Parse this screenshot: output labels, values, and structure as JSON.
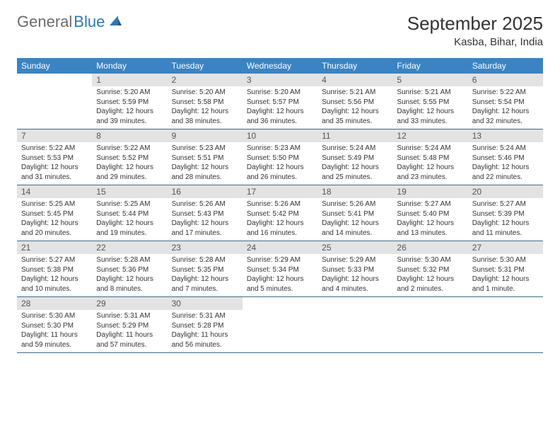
{
  "logo": {
    "part1": "General",
    "part2": "Blue"
  },
  "title": "September 2025",
  "subtitle": "Kasba, Bihar, India",
  "day_names": [
    "Sunday",
    "Monday",
    "Tuesday",
    "Wednesday",
    "Thursday",
    "Friday",
    "Saturday"
  ],
  "colors": {
    "header_bg": "#3a84c4",
    "header_fg": "#ffffff",
    "daynum_bg": "#e3e3e3",
    "week_border": "#3a6b92",
    "logo_blue": "#2e77b8",
    "logo_gray": "#6b6b6b"
  },
  "weeks": [
    [
      {
        "n": "",
        "lines": []
      },
      {
        "n": "1",
        "lines": [
          "Sunrise: 5:20 AM",
          "Sunset: 5:59 PM",
          "Daylight: 12 hours and 39 minutes."
        ]
      },
      {
        "n": "2",
        "lines": [
          "Sunrise: 5:20 AM",
          "Sunset: 5:58 PM",
          "Daylight: 12 hours and 38 minutes."
        ]
      },
      {
        "n": "3",
        "lines": [
          "Sunrise: 5:20 AM",
          "Sunset: 5:57 PM",
          "Daylight: 12 hours and 36 minutes."
        ]
      },
      {
        "n": "4",
        "lines": [
          "Sunrise: 5:21 AM",
          "Sunset: 5:56 PM",
          "Daylight: 12 hours and 35 minutes."
        ]
      },
      {
        "n": "5",
        "lines": [
          "Sunrise: 5:21 AM",
          "Sunset: 5:55 PM",
          "Daylight: 12 hours and 33 minutes."
        ]
      },
      {
        "n": "6",
        "lines": [
          "Sunrise: 5:22 AM",
          "Sunset: 5:54 PM",
          "Daylight: 12 hours and 32 minutes."
        ]
      }
    ],
    [
      {
        "n": "7",
        "lines": [
          "Sunrise: 5:22 AM",
          "Sunset: 5:53 PM",
          "Daylight: 12 hours and 31 minutes."
        ]
      },
      {
        "n": "8",
        "lines": [
          "Sunrise: 5:22 AM",
          "Sunset: 5:52 PM",
          "Daylight: 12 hours and 29 minutes."
        ]
      },
      {
        "n": "9",
        "lines": [
          "Sunrise: 5:23 AM",
          "Sunset: 5:51 PM",
          "Daylight: 12 hours and 28 minutes."
        ]
      },
      {
        "n": "10",
        "lines": [
          "Sunrise: 5:23 AM",
          "Sunset: 5:50 PM",
          "Daylight: 12 hours and 26 minutes."
        ]
      },
      {
        "n": "11",
        "lines": [
          "Sunrise: 5:24 AM",
          "Sunset: 5:49 PM",
          "Daylight: 12 hours and 25 minutes."
        ]
      },
      {
        "n": "12",
        "lines": [
          "Sunrise: 5:24 AM",
          "Sunset: 5:48 PM",
          "Daylight: 12 hours and 23 minutes."
        ]
      },
      {
        "n": "13",
        "lines": [
          "Sunrise: 5:24 AM",
          "Sunset: 5:46 PM",
          "Daylight: 12 hours and 22 minutes."
        ]
      }
    ],
    [
      {
        "n": "14",
        "lines": [
          "Sunrise: 5:25 AM",
          "Sunset: 5:45 PM",
          "Daylight: 12 hours and 20 minutes."
        ]
      },
      {
        "n": "15",
        "lines": [
          "Sunrise: 5:25 AM",
          "Sunset: 5:44 PM",
          "Daylight: 12 hours and 19 minutes."
        ]
      },
      {
        "n": "16",
        "lines": [
          "Sunrise: 5:26 AM",
          "Sunset: 5:43 PM",
          "Daylight: 12 hours and 17 minutes."
        ]
      },
      {
        "n": "17",
        "lines": [
          "Sunrise: 5:26 AM",
          "Sunset: 5:42 PM",
          "Daylight: 12 hours and 16 minutes."
        ]
      },
      {
        "n": "18",
        "lines": [
          "Sunrise: 5:26 AM",
          "Sunset: 5:41 PM",
          "Daylight: 12 hours and 14 minutes."
        ]
      },
      {
        "n": "19",
        "lines": [
          "Sunrise: 5:27 AM",
          "Sunset: 5:40 PM",
          "Daylight: 12 hours and 13 minutes."
        ]
      },
      {
        "n": "20",
        "lines": [
          "Sunrise: 5:27 AM",
          "Sunset: 5:39 PM",
          "Daylight: 12 hours and 11 minutes."
        ]
      }
    ],
    [
      {
        "n": "21",
        "lines": [
          "Sunrise: 5:27 AM",
          "Sunset: 5:38 PM",
          "Daylight: 12 hours and 10 minutes."
        ]
      },
      {
        "n": "22",
        "lines": [
          "Sunrise: 5:28 AM",
          "Sunset: 5:36 PM",
          "Daylight: 12 hours and 8 minutes."
        ]
      },
      {
        "n": "23",
        "lines": [
          "Sunrise: 5:28 AM",
          "Sunset: 5:35 PM",
          "Daylight: 12 hours and 7 minutes."
        ]
      },
      {
        "n": "24",
        "lines": [
          "Sunrise: 5:29 AM",
          "Sunset: 5:34 PM",
          "Daylight: 12 hours and 5 minutes."
        ]
      },
      {
        "n": "25",
        "lines": [
          "Sunrise: 5:29 AM",
          "Sunset: 5:33 PM",
          "Daylight: 12 hours and 4 minutes."
        ]
      },
      {
        "n": "26",
        "lines": [
          "Sunrise: 5:30 AM",
          "Sunset: 5:32 PM",
          "Daylight: 12 hours and 2 minutes."
        ]
      },
      {
        "n": "27",
        "lines": [
          "Sunrise: 5:30 AM",
          "Sunset: 5:31 PM",
          "Daylight: 12 hours and 1 minute."
        ]
      }
    ],
    [
      {
        "n": "28",
        "lines": [
          "Sunrise: 5:30 AM",
          "Sunset: 5:30 PM",
          "Daylight: 11 hours and 59 minutes."
        ]
      },
      {
        "n": "29",
        "lines": [
          "Sunrise: 5:31 AM",
          "Sunset: 5:29 PM",
          "Daylight: 11 hours and 57 minutes."
        ]
      },
      {
        "n": "30",
        "lines": [
          "Sunrise: 5:31 AM",
          "Sunset: 5:28 PM",
          "Daylight: 11 hours and 56 minutes."
        ]
      },
      {
        "n": "",
        "lines": []
      },
      {
        "n": "",
        "lines": []
      },
      {
        "n": "",
        "lines": []
      },
      {
        "n": "",
        "lines": []
      }
    ]
  ]
}
